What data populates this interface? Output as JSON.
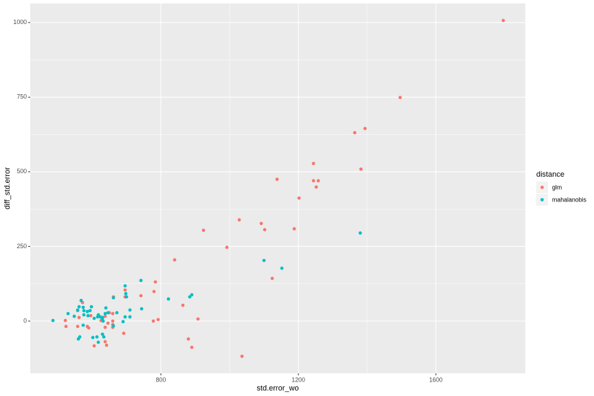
{
  "chart_data": {
    "type": "scatter",
    "x_label": "std.error_wo",
    "y_label": "diff_std.error",
    "legend_title": "distance",
    "legend": "right",
    "grid": true,
    "xlim": [
      420,
      1860
    ],
    "xticks": [
      800,
      1200,
      1600
    ],
    "ylim": [
      -175,
      1064
    ],
    "yticks": [
      0,
      250,
      500,
      750,
      1000
    ],
    "series": [
      {
        "name": "glm",
        "color": "#F8766D",
        "x": [
          1796,
          1496,
          1364,
          1394,
          1382,
          1244,
          1244,
          1258,
          1252,
          1138,
          1202,
          1028,
          924,
          1092,
          1102,
          1188,
          992,
          1124,
          840,
          784,
          780,
          696,
          696,
          742,
          864,
          908,
          792,
          778,
          880,
          890,
          1036,
          692,
          662,
          650,
          660,
          660,
          660,
          660,
          638,
          642,
          606,
          638,
          596,
          586,
          590,
          562,
          558,
          522,
          524,
          558,
          572,
          638,
          626,
          646
        ],
        "values": [
          1007,
          749,
          631,
          645,
          509,
          528,
          470,
          470,
          449,
          475,
          412,
          339,
          304,
          327,
          306,
          309,
          247,
          143,
          205,
          131,
          99,
          104,
          81,
          85,
          53,
          7,
          5,
          0,
          -60,
          -88,
          -118,
          -41,
          81,
          28,
          25,
          0,
          -12,
          -21,
          -69,
          -81,
          -83,
          -21,
          18,
          -18,
          -23,
          12,
          -18,
          2,
          -18,
          35,
          62,
          16,
          2,
          -7
        ]
      },
      {
        "name": "mahalanobis",
        "color": "#00BFC4",
        "x": [
          1380,
          1100,
          1152,
          742,
          696,
          698,
          700,
          822,
          884,
          890,
          662,
          744,
          710,
          710,
          672,
          690,
          696,
          568,
          562,
          574,
          598,
          558,
          530,
          548,
          576,
          586,
          594,
          576,
          588,
          606,
          618,
          624,
          630,
          640,
          638,
          646,
          630,
          632,
          616,
          574,
          564,
          560,
          602,
          614,
          630,
          634,
          618,
          486,
          662
        ],
        "values": [
          295,
          203,
          177,
          136,
          118,
          92,
          81,
          74,
          81,
          88,
          78,
          41,
          37,
          14,
          28,
          -2,
          14,
          69,
          48,
          46,
          48,
          37,
          25,
          16,
          35,
          32,
          35,
          21,
          18,
          9,
          21,
          14,
          12,
          44,
          25,
          28,
          9,
          0,
          14,
          -14,
          -53,
          -60,
          -55,
          -53,
          -44,
          -53,
          -71,
          2,
          -16
        ]
      }
    ]
  }
}
